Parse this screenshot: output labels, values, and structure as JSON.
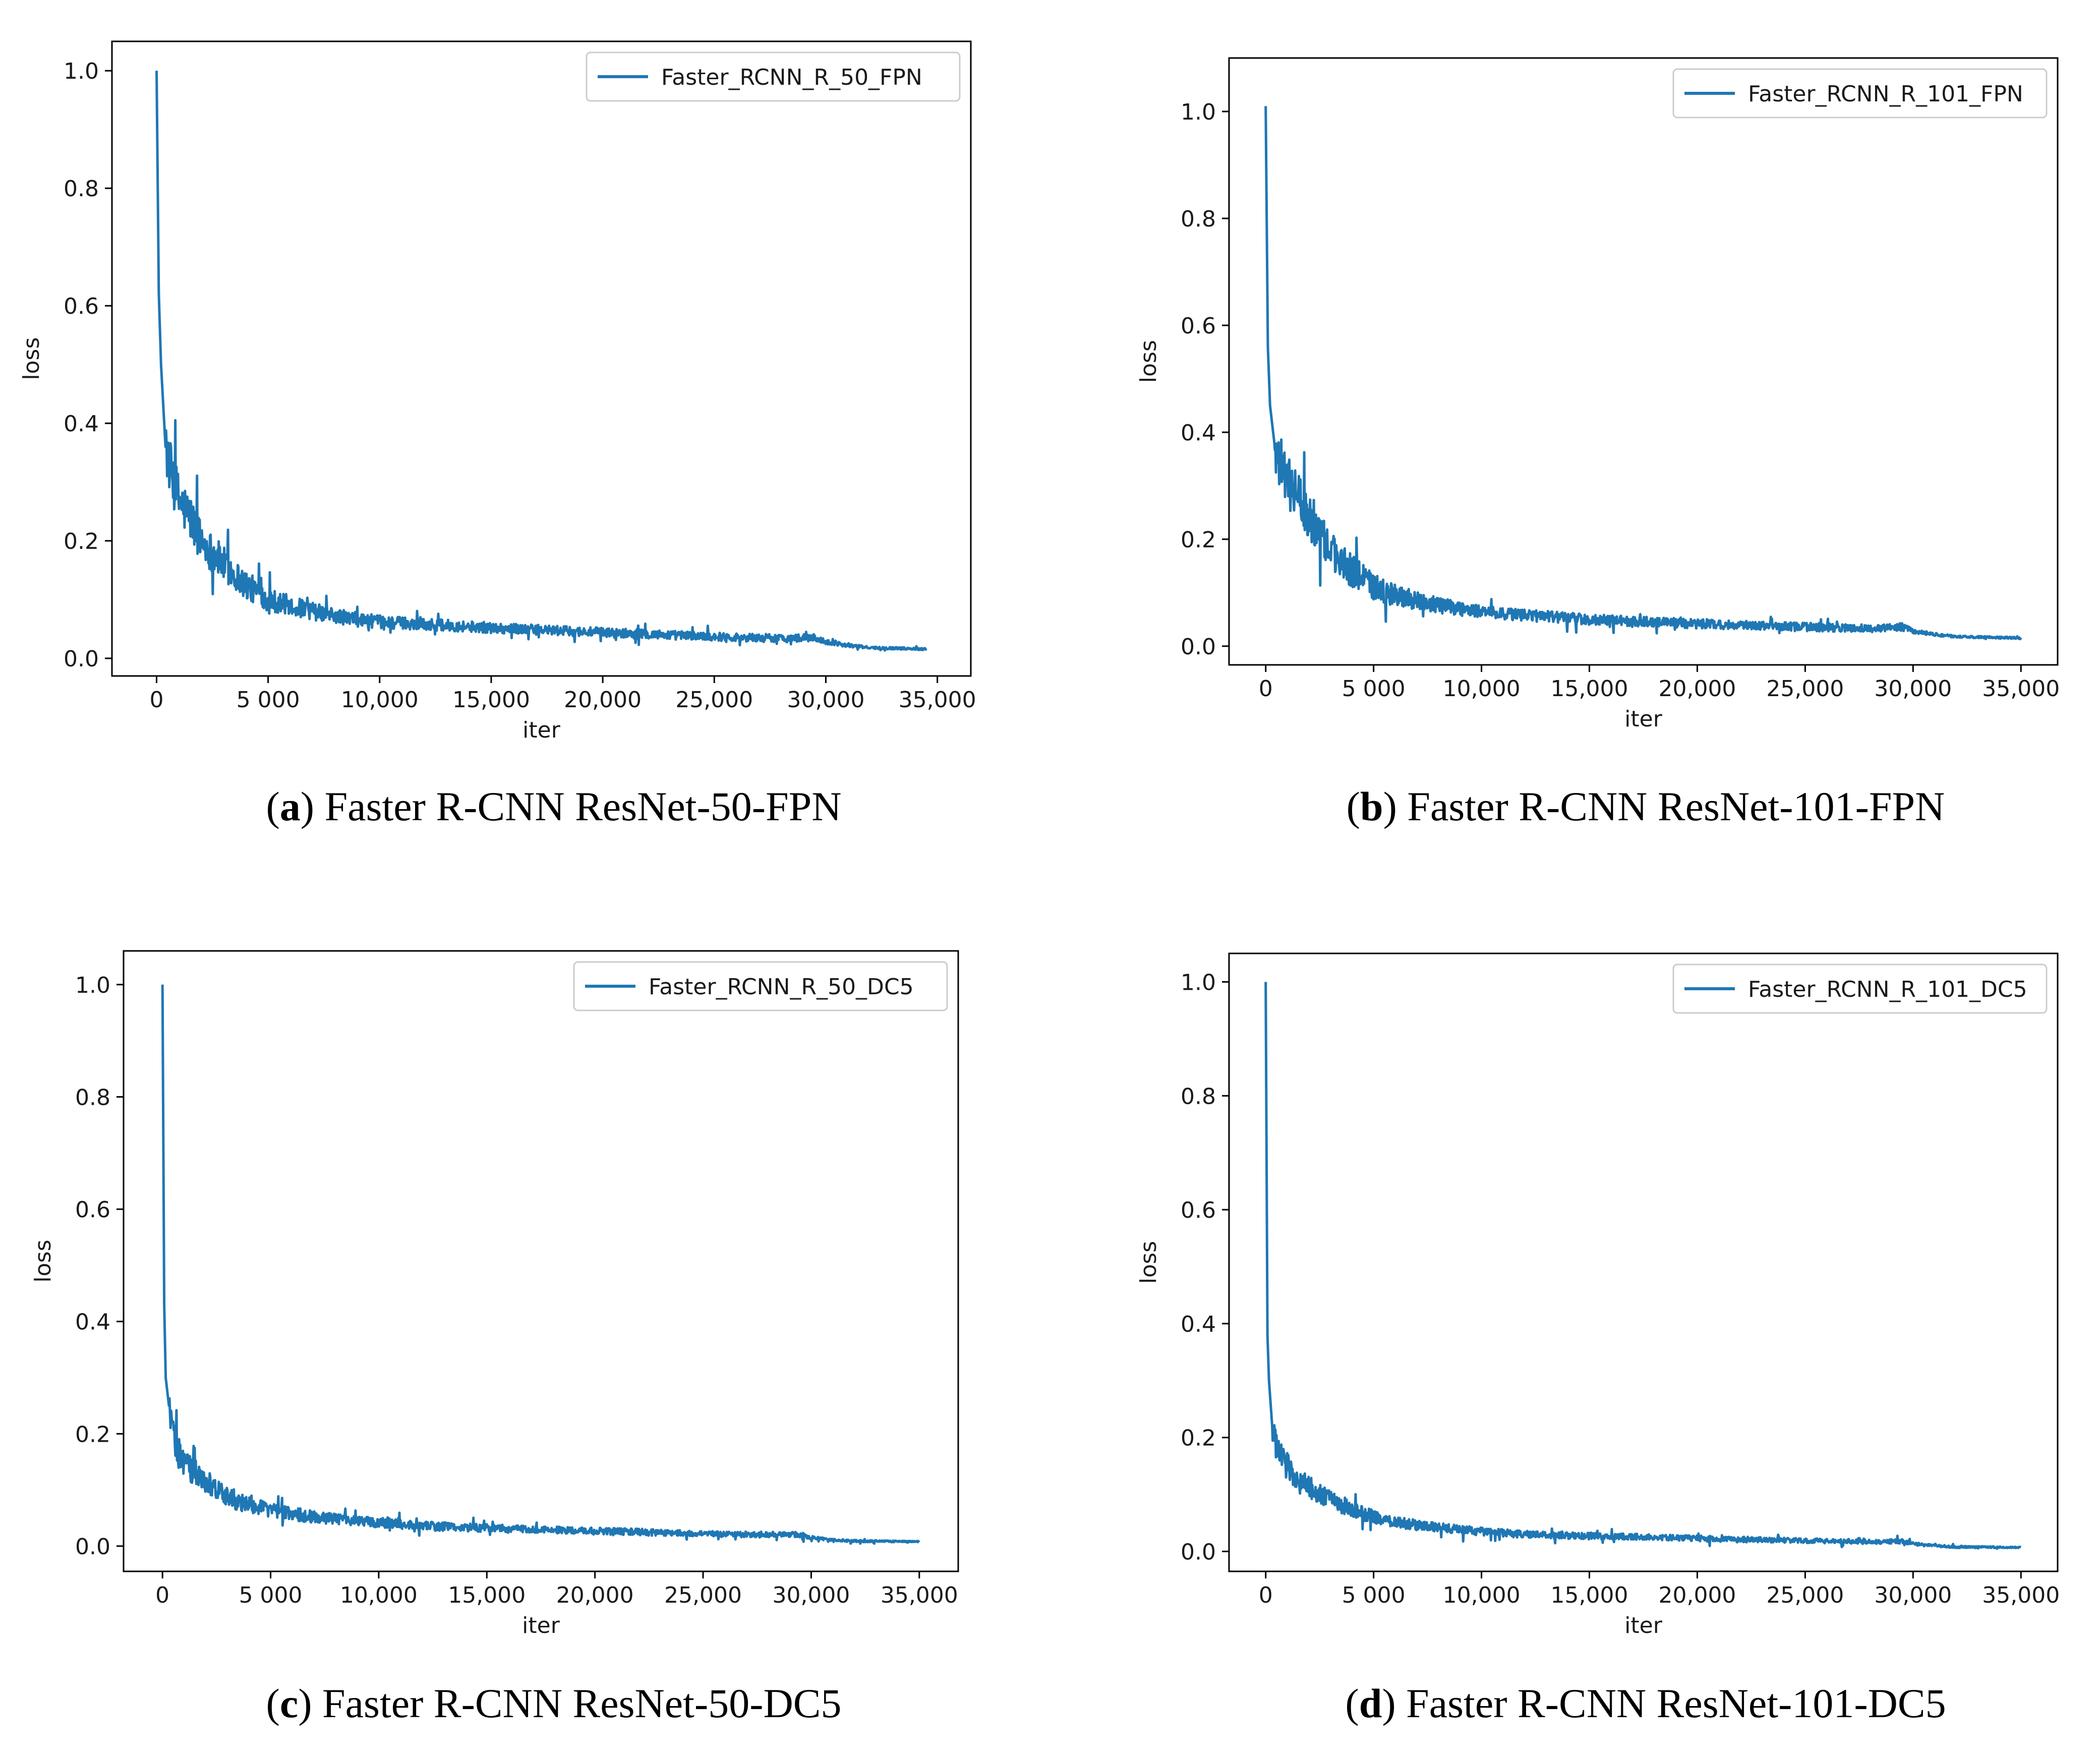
{
  "figure": {
    "line_color": "#1f77b4",
    "panels": [
      {
        "id": "a",
        "caption_letter": "a",
        "caption_text": "Faster R-CNN ResNet-50-FPN",
        "legend": "Faster_RCNN_R_50_FPN",
        "xlabel": "iter",
        "ylabel": "loss"
      },
      {
        "id": "b",
        "caption_letter": "b",
        "caption_text": "Faster R-CNN ResNet-101-FPN",
        "legend": "Faster_RCNN_R_101_FPN",
        "xlabel": "iter",
        "ylabel": "loss"
      },
      {
        "id": "c",
        "caption_letter": "c",
        "caption_text": "Faster R-CNN ResNet-50-DC5",
        "legend": "Faster_RCNN_R_50_DC5",
        "xlabel": "iter",
        "ylabel": "loss"
      },
      {
        "id": "d",
        "caption_letter": "d",
        "caption_text": "Faster R-CNN ResNet-101-DC5",
        "legend": "Faster_RCNN_R_101_DC5",
        "xlabel": "iter",
        "ylabel": "loss"
      }
    ]
  },
  "chart_data": [
    {
      "type": "line",
      "title": "",
      "series_name": "Faster_RCNN_R_50_FPN",
      "xlabel": "iter",
      "ylabel": "loss",
      "xlim": [
        -2000,
        36500
      ],
      "ylim": [
        -0.03,
        1.05
      ],
      "xticks": [
        0,
        5000,
        10000,
        15000,
        20000,
        25000,
        30000,
        35000
      ],
      "xtick_labels": [
        "0",
        "5 000",
        "10,000",
        "15,000",
        "20,000",
        "25,000",
        "30,000",
        "35,000"
      ],
      "yticks": [
        0.0,
        0.2,
        0.4,
        0.6,
        0.8,
        1.0
      ],
      "ytick_labels": [
        "0.0",
        "0.2",
        "0.4",
        "0.6",
        "0.8",
        "1.0"
      ],
      "x": [
        0,
        100,
        200,
        400,
        700,
        1000,
        1500,
        2000,
        3000,
        4000,
        5000,
        6000,
        7000,
        8000,
        9000,
        10000,
        12000,
        15000,
        18000,
        20000,
        22000,
        25000,
        28000,
        29500,
        30000,
        31000,
        32000,
        34500
      ],
      "values": [
        1.0,
        0.62,
        0.5,
        0.36,
        0.31,
        0.27,
        0.24,
        0.2,
        0.16,
        0.125,
        0.1,
        0.09,
        0.08,
        0.072,
        0.066,
        0.062,
        0.058,
        0.052,
        0.047,
        0.044,
        0.041,
        0.037,
        0.034,
        0.035,
        0.028,
        0.022,
        0.018,
        0.016
      ],
      "noise": [
        0.0,
        0.08,
        0.06,
        0.05,
        0.045,
        0.045,
        0.04,
        0.035,
        0.03,
        0.025,
        0.02,
        0.017,
        0.015,
        0.013,
        0.012,
        0.011,
        0.01,
        0.009,
        0.008,
        0.008,
        0.008,
        0.007,
        0.007,
        0.006,
        0.004,
        0.003,
        0.002,
        0.002
      ]
    },
    {
      "type": "line",
      "title": "",
      "series_name": "Faster_RCNN_R_101_FPN",
      "xlabel": "iter",
      "ylabel": "loss",
      "xlim": [
        -1700,
        36700
      ],
      "ylim": [
        -0.035,
        1.1
      ],
      "xticks": [
        0,
        5000,
        10000,
        15000,
        20000,
        25000,
        30000,
        35000
      ],
      "xtick_labels": [
        "0",
        "5 000",
        "10,000",
        "15,000",
        "20,000",
        "25,000",
        "30,000",
        "35,000"
      ],
      "yticks": [
        0.0,
        0.2,
        0.4,
        0.6,
        0.8,
        1.0
      ],
      "ytick_labels": [
        "0.0",
        "0.2",
        "0.4",
        "0.6",
        "0.8",
        "1.0"
      ],
      "x": [
        0,
        100,
        200,
        400,
        700,
        1000,
        1500,
        2000,
        3000,
        4000,
        5000,
        6000,
        7000,
        8000,
        9000,
        10000,
        12000,
        15000,
        18000,
        20000,
        22000,
        25000,
        28000,
        29500,
        30000,
        31000,
        32000,
        35000
      ],
      "values": [
        1.01,
        0.56,
        0.45,
        0.38,
        0.34,
        0.31,
        0.28,
        0.24,
        0.18,
        0.14,
        0.11,
        0.095,
        0.085,
        0.077,
        0.07,
        0.065,
        0.058,
        0.05,
        0.045,
        0.042,
        0.04,
        0.036,
        0.033,
        0.036,
        0.028,
        0.022,
        0.018,
        0.015
      ],
      "noise": [
        0.0,
        0.08,
        0.06,
        0.05,
        0.05,
        0.05,
        0.045,
        0.04,
        0.035,
        0.03,
        0.025,
        0.02,
        0.017,
        0.015,
        0.013,
        0.012,
        0.011,
        0.01,
        0.009,
        0.009,
        0.008,
        0.008,
        0.007,
        0.007,
        0.004,
        0.003,
        0.002,
        0.002
      ]
    },
    {
      "type": "line",
      "title": "",
      "series_name": "Faster_RCNN_R_50_DC5",
      "xlabel": "iter",
      "ylabel": "loss",
      "xlim": [
        -1800,
        36800
      ],
      "ylim": [
        -0.045,
        1.06
      ],
      "xticks": [
        0,
        5000,
        10000,
        15000,
        20000,
        25000,
        30000,
        35000
      ],
      "xtick_labels": [
        "0",
        "5 000",
        "10,000",
        "15,000",
        "20,000",
        "25,000",
        "30,000",
        "35,000"
      ],
      "yticks": [
        0.0,
        0.2,
        0.4,
        0.6,
        0.8,
        1.0
      ],
      "ytick_labels": [
        "0.0",
        "0.2",
        "0.4",
        "0.6",
        "0.8",
        "1.0"
      ],
      "x": [
        0,
        80,
        150,
        300,
        500,
        800,
        1200,
        1800,
        2500,
        3500,
        5000,
        6000,
        7000,
        8000,
        9000,
        10000,
        12000,
        15000,
        18000,
        20000,
        22000,
        25000,
        28000,
        29500,
        30000,
        31000,
        32000,
        35000
      ],
      "values": [
        1.0,
        0.43,
        0.3,
        0.25,
        0.2,
        0.16,
        0.14,
        0.12,
        0.1,
        0.08,
        0.065,
        0.058,
        0.052,
        0.048,
        0.045,
        0.042,
        0.036,
        0.032,
        0.029,
        0.027,
        0.025,
        0.022,
        0.02,
        0.02,
        0.015,
        0.011,
        0.009,
        0.008
      ],
      "noise": [
        0.0,
        0.05,
        0.04,
        0.035,
        0.03,
        0.028,
        0.025,
        0.022,
        0.02,
        0.018,
        0.014,
        0.012,
        0.011,
        0.01,
        0.009,
        0.009,
        0.008,
        0.007,
        0.006,
        0.006,
        0.006,
        0.005,
        0.005,
        0.005,
        0.003,
        0.002,
        0.002,
        0.001
      ]
    },
    {
      "type": "line",
      "title": "",
      "series_name": "Faster_RCNN_R_101_DC5",
      "xlabel": "iter",
      "ylabel": "loss",
      "xlim": [
        -1700,
        36700
      ],
      "ylim": [
        -0.035,
        1.05
      ],
      "xticks": [
        0,
        5000,
        10000,
        15000,
        20000,
        25000,
        30000,
        35000
      ],
      "xtick_labels": [
        "0",
        "5 000",
        "10,000",
        "15,000",
        "20,000",
        "25,000",
        "30,000",
        "35,000"
      ],
      "yticks": [
        0.0,
        0.2,
        0.4,
        0.6,
        0.8,
        1.0
      ],
      "ytick_labels": [
        "0.0",
        "0.2",
        "0.4",
        "0.6",
        "0.8",
        "1.0"
      ],
      "x": [
        0,
        80,
        150,
        300,
        500,
        800,
        1200,
        1800,
        2500,
        3500,
        5000,
        6000,
        7000,
        8000,
        9000,
        10000,
        12000,
        15000,
        18000,
        20000,
        22000,
        25000,
        28000,
        29500,
        30000,
        31000,
        32000,
        35000
      ],
      "values": [
        1.0,
        0.38,
        0.3,
        0.22,
        0.18,
        0.16,
        0.14,
        0.12,
        0.1,
        0.08,
        0.06,
        0.052,
        0.046,
        0.042,
        0.038,
        0.035,
        0.03,
        0.027,
        0.025,
        0.023,
        0.021,
        0.019,
        0.017,
        0.018,
        0.013,
        0.01,
        0.008,
        0.007
      ],
      "noise": [
        0.0,
        0.05,
        0.04,
        0.03,
        0.028,
        0.025,
        0.022,
        0.02,
        0.018,
        0.015,
        0.012,
        0.01,
        0.009,
        0.008,
        0.008,
        0.007,
        0.006,
        0.006,
        0.005,
        0.005,
        0.005,
        0.004,
        0.004,
        0.004,
        0.003,
        0.002,
        0.002,
        0.001
      ]
    }
  ]
}
